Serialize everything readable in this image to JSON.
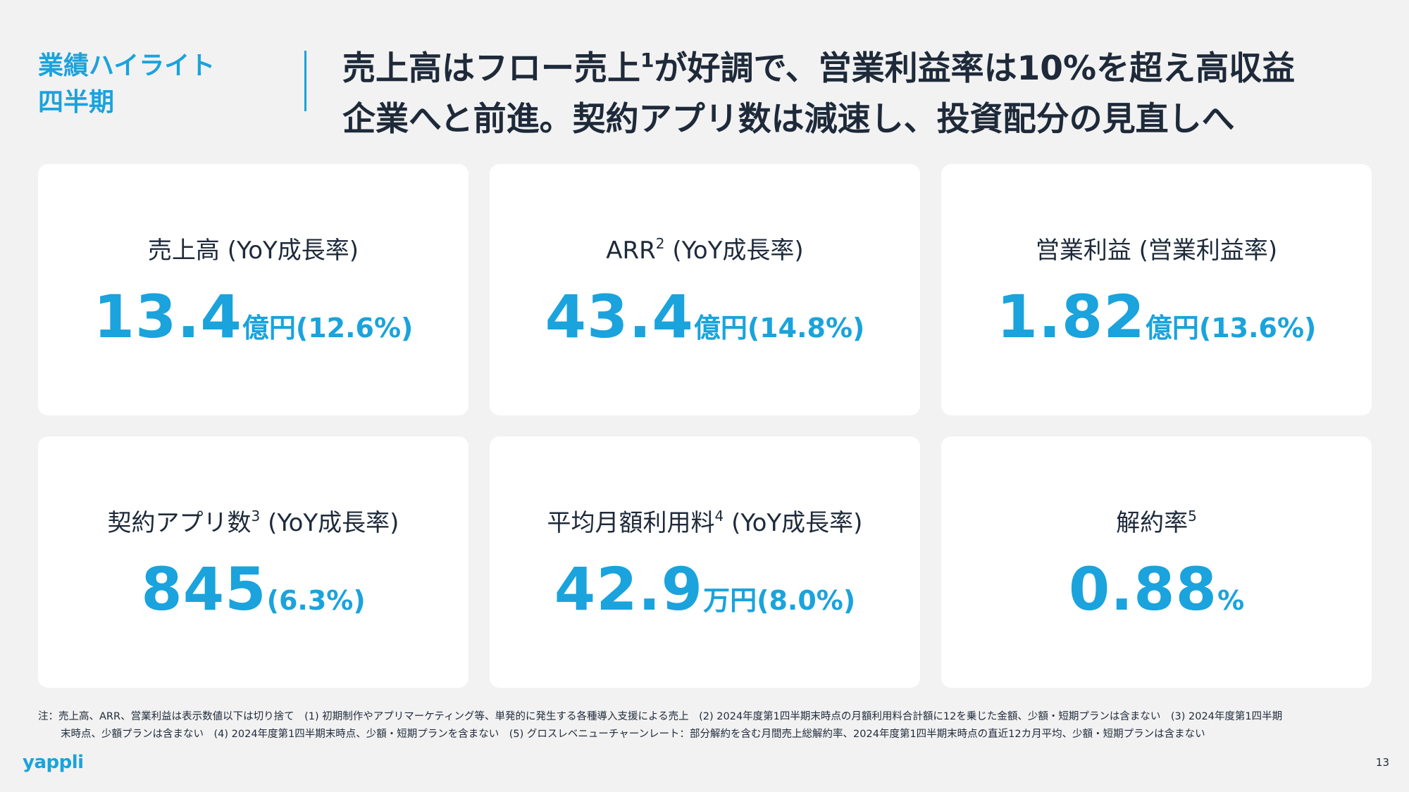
{
  "section": {
    "line1": "業績ハイライト",
    "line2": "四半期"
  },
  "headline": {
    "line1_a": "売上高はフロー売上",
    "line1_sup": "1",
    "line1_b": "が好調で、営業利益率は10%を超え高収益",
    "line2": "企業へと前進。契約アプリ数は減速し、投資配分の見直しへ"
  },
  "cards": [
    {
      "title": "売上高 (YoY成長率)",
      "title_sup": "",
      "title_after": "",
      "value": "13.4",
      "unit": "億円",
      "pct": "(12.6%)"
    },
    {
      "title": "ARR",
      "title_sup": "2",
      "title_after": " (YoY成長率)",
      "value": "43.4",
      "unit": "億円",
      "pct": "(14.8%)"
    },
    {
      "title": "営業利益 (営業利益率)",
      "title_sup": "",
      "title_after": "",
      "value": "1.82",
      "unit": "億円",
      "pct": "(13.6%)"
    },
    {
      "title": "契約アプリ数",
      "title_sup": "3",
      "title_after": " (YoY成長率)",
      "value": "845",
      "unit": "",
      "pct": "(6.3%)"
    },
    {
      "title": "平均月額利用料",
      "title_sup": "4",
      "title_after": " (YoY成長率)",
      "value": "42.9",
      "unit": "万円",
      "pct": "(8.0%)"
    },
    {
      "title": "解約率",
      "title_sup": "5",
      "title_after": "",
      "value": "0.88",
      "unit": "%",
      "pct": ""
    }
  ],
  "footnote": {
    "line1": "注：売上高、ARR、営業利益は表示数値以下は切り捨て　(1) 初期制作やアプリマーケティング等、単発的に発生する各種導入支援による売上　(2) 2024年度第1四半期末時点の月額利用料合計額に12を乗じた金額、少額・短期プランは含まない　(3) 2024年度第1四半期",
    "line2": "末時点、少額プランは含まない　(4) 2024年度第1四半期末時点、少額・短期プランを含まない　(5) グロスレベニューチャーンレート：部分解約を含む月間売上総解約率、2024年度第1四半期末時点の直近12カ月平均、少額・短期プランは含まない"
  },
  "logo": "yappli",
  "page_number": "13",
  "colors": {
    "accent": "#1aa3dc",
    "text": "#1e2a3a",
    "background": "#f2f2f2",
    "card": "#ffffff"
  }
}
